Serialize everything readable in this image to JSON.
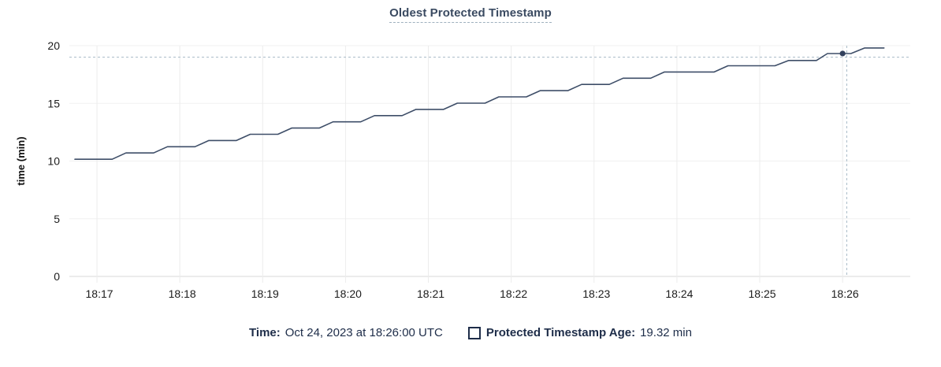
{
  "chart": {
    "title": "Oldest Protected Timestamp"
  },
  "legend": {
    "time_label": "Time:",
    "time_value": "Oct 24, 2023 at 18:26:00 UTC",
    "series_label": "Protected Timestamp Age:",
    "series_value": "19.32 min",
    "series_swatch": "checkbox-square"
  },
  "colors": {
    "line": "#3e4e68",
    "hover_dot": "#32405c",
    "crosshair": "#a7b9c6",
    "grid_h": "#f0f0f0",
    "grid_v": "#ececec",
    "axis_zero": "#d8d8d8",
    "title_text": "#3a4a61",
    "legend_text": "#1e2d49",
    "tick_text": "#1c1c1c"
  },
  "chart_data": {
    "type": "line",
    "title": "Oldest Protected Timestamp",
    "xlabel": "",
    "ylabel": "time (min)",
    "ylim": [
      0,
      20
    ],
    "yticks": [
      0,
      5,
      10,
      15,
      20
    ],
    "grid": true,
    "legend_position": "bottom",
    "x_unit": "seconds after 18:16:00 UTC, Oct 24 2023",
    "x_domain": [
      40,
      649
    ],
    "xticks": [
      {
        "label": "18:17",
        "t": 60
      },
      {
        "label": "18:18",
        "t": 120
      },
      {
        "label": "18:19",
        "t": 180
      },
      {
        "label": "18:20",
        "t": 240
      },
      {
        "label": "18:21",
        "t": 300
      },
      {
        "label": "18:22",
        "t": 360
      },
      {
        "label": "18:23",
        "t": 420
      },
      {
        "label": "18:24",
        "t": 480
      },
      {
        "label": "18:25",
        "t": 540
      },
      {
        "label": "18:26",
        "t": 600
      }
    ],
    "series": [
      {
        "name": "Protected Timestamp Age",
        "unit": "min",
        "points": [
          [
            44,
            10.16
          ],
          [
            71,
            10.16
          ],
          [
            81,
            10.7
          ],
          [
            101,
            10.7
          ],
          [
            111,
            11.24
          ],
          [
            131,
            11.24
          ],
          [
            141,
            11.78
          ],
          [
            161,
            11.78
          ],
          [
            171,
            12.32
          ],
          [
            191,
            12.32
          ],
          [
            201,
            12.86
          ],
          [
            221,
            12.86
          ],
          [
            231,
            13.4
          ],
          [
            251,
            13.4
          ],
          [
            261,
            13.94
          ],
          [
            281,
            13.94
          ],
          [
            291,
            14.48
          ],
          [
            311,
            14.48
          ],
          [
            321,
            15.02
          ],
          [
            341,
            15.02
          ],
          [
            351,
            15.56
          ],
          [
            371,
            15.56
          ],
          [
            381,
            16.1
          ],
          [
            401,
            16.1
          ],
          [
            411,
            16.64
          ],
          [
            431,
            16.64
          ],
          [
            441,
            17.18
          ],
          [
            461,
            17.18
          ],
          [
            471,
            17.72
          ],
          [
            507,
            17.72
          ],
          [
            517,
            18.26
          ],
          [
            551,
            18.26
          ],
          [
            561,
            18.72
          ],
          [
            581,
            18.72
          ],
          [
            589,
            19.32
          ],
          [
            606,
            19.32
          ],
          [
            616,
            19.8
          ],
          [
            630,
            19.8
          ]
        ]
      }
    ],
    "hover": {
      "time": "18:26:00",
      "point_t": 600,
      "point_value": 19.32,
      "crosshair_t": 603,
      "crosshair_value": 19.0
    }
  }
}
